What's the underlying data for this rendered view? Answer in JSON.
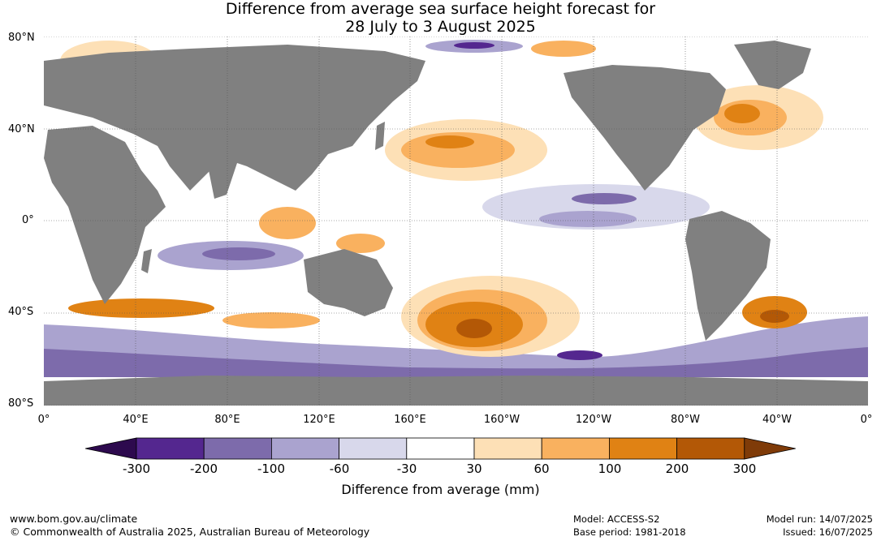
{
  "title": {
    "line1": "Difference from average sea surface height forecast for",
    "line2": "28 July to 3 August 2025"
  },
  "map": {
    "latitude_labels": [
      "80°N",
      "40°N",
      "0°",
      "40°S",
      "80°S"
    ],
    "longitude_labels": [
      "0°",
      "40°E",
      "80°E",
      "120°E",
      "160°E",
      "160°W",
      "120°W",
      "80°W",
      "40°W",
      "0°"
    ],
    "colors": {
      "land": "#808080",
      "neutral": "#ffffff",
      "grid": "#555555"
    }
  },
  "colorbar": {
    "title": "Difference from average (mm)",
    "tick_labels": [
      "-300",
      "-200",
      "-100",
      "-60",
      "-30",
      "30",
      "60",
      "100",
      "200",
      "300"
    ],
    "colors": [
      "#2d0a4e",
      "#54278f",
      "#7d6bab",
      "#aaa3cf",
      "#d8d8eb",
      "#ffffff",
      "#fde0b6",
      "#f9b15f",
      "#e08214",
      "#b35806",
      "#7f3b08"
    ]
  },
  "footer": {
    "url": "www.bom.gov.au/climate",
    "copyright": "© Commonwealth of Australia 2025, Australian Bureau of Meteorology",
    "model": "Model: ACCESS-S2",
    "base_period": "Base period: 1981-2018",
    "model_run": "Model run: 14/07/2025",
    "issued": "Issued: 16/07/2025"
  }
}
